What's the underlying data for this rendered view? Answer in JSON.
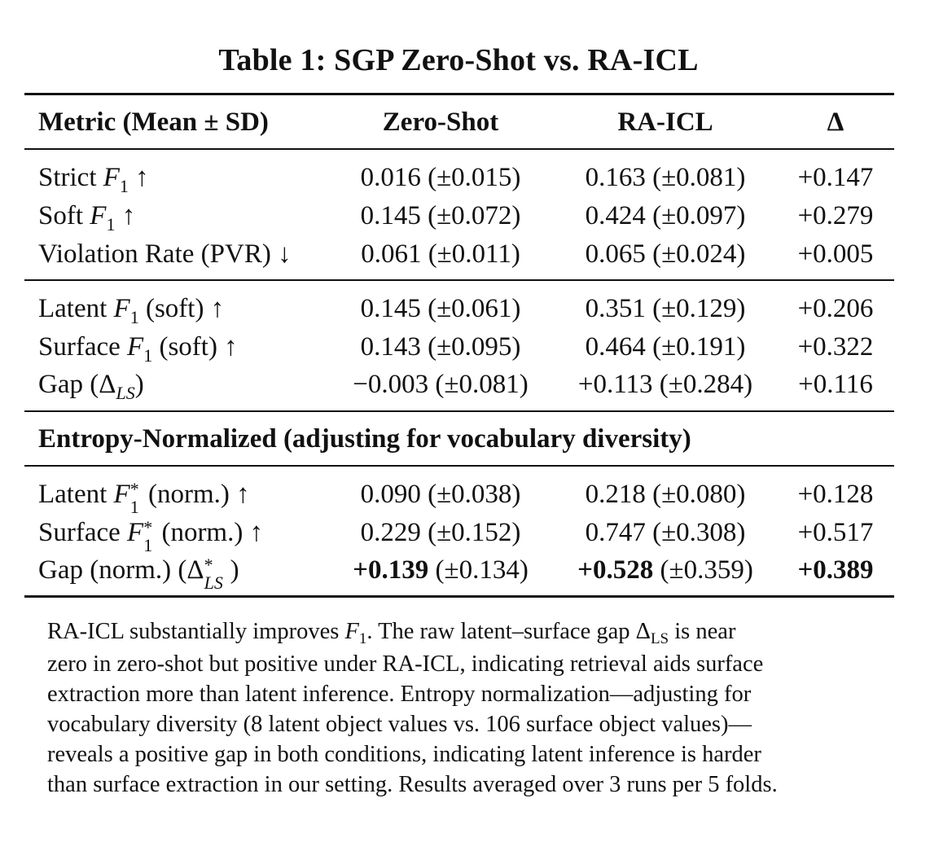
{
  "table": {
    "title": "Table 1: SGP Zero-Shot vs. RA-ICL",
    "headers": {
      "metric": "Metric (Mean ± SD)",
      "zero_shot": "Zero-Shot",
      "ra_icl": "RA-ICL",
      "delta": "Δ"
    },
    "rows": [
      {
        "label": "Strict",
        "var": "F",
        "sub": "1",
        "suffix": " ↑",
        "zero_shot": "0.016 (±0.015)",
        "ra_icl": "0.163 (±0.081)",
        "delta": "+0.147"
      },
      {
        "label": "Soft",
        "var": "F",
        "sub": "1",
        "suffix": " ↑",
        "zero_shot": "0.145 (±0.072)",
        "ra_icl": "0.424 (±0.097)",
        "delta": "+0.279"
      },
      {
        "label": "Violation Rate (PVR) ↓",
        "zero_shot": "0.061 (±0.011)",
        "ra_icl": "0.065 (±0.024)",
        "delta": "+0.005"
      },
      {
        "label": "Latent",
        "var": "F",
        "sub": "1",
        "suffix": " (soft) ↑",
        "zero_shot": "0.145 (±0.061)",
        "ra_icl": "0.351 (±0.129)",
        "delta": "+0.206"
      },
      {
        "label": "Surface",
        "var": "F",
        "sub": "1",
        "suffix": " (soft) ↑",
        "zero_shot": "0.143 (±0.095)",
        "ra_icl": "0.464 (±0.191)",
        "delta": "+0.322"
      },
      {
        "label": "Gap (Δ",
        "sub_italic": "LS",
        "suffix": ")",
        "zero_shot": "−0.003 (±0.081)",
        "ra_icl": "+0.113 (±0.284)",
        "delta": "+0.116"
      }
    ],
    "section_label": "Entropy-Normalized (adjusting for vocabulary diversity)",
    "norm_rows": [
      {
        "label": "Latent",
        "var": "F",
        "sup": "*",
        "sub": "1",
        "suffix": " (norm.) ↑",
        "zero_shot": "0.090 (±0.038)",
        "ra_icl": "0.218 (±0.080)",
        "delta": "+0.128"
      },
      {
        "label": "Surface",
        "var": "F",
        "sup": "*",
        "sub": "1",
        "suffix": " (norm.) ↑",
        "zero_shot": "0.229 (±0.152)",
        "ra_icl": "0.747 (±0.308)",
        "delta": "+0.517"
      },
      {
        "label": "Gap (norm.) (Δ",
        "sup": "*",
        "sub_italic": "LS",
        "suffix": ")",
        "zero_shot_bold": "+0.139",
        "zero_shot_rest": " (±0.134)",
        "ra_icl_bold": "+0.528",
        "ra_icl_rest": " (±0.359)",
        "delta": "+0.389"
      }
    ],
    "notes": [
      "RA-ICL substantially improves ",
      ". The raw latent–surface gap Δ",
      " is near",
      "zero in zero-shot but positive under RA-ICL, indicating retrieval aids surface",
      "extraction more than latent inference. Entropy normalization—adjusting for",
      "vocabulary diversity (8 latent object values vs. 106 surface object values)—",
      "reveals a positive gap in both conditions, indicating latent inference is harder",
      "than surface extraction in our setting. Results averaged over 3 runs per 5 folds."
    ],
    "notes_symbols": {
      "f": "F",
      "f_sub": "1",
      "ls": "LS"
    }
  }
}
